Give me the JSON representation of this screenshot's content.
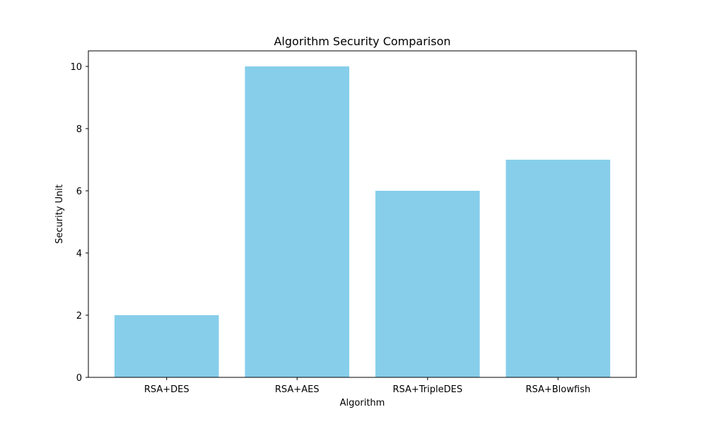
{
  "chart_data": {
    "type": "bar",
    "title": "Algorithm Security Comparison",
    "xlabel": "Algorithm",
    "ylabel": "Security Unit",
    "categories": [
      "RSA+DES",
      "RSA+AES",
      "RSA+TripleDES",
      "RSA+Blowfish"
    ],
    "values": [
      2,
      10,
      6,
      7
    ],
    "ylim": [
      0,
      10.5
    ],
    "yticks": [
      0,
      2,
      4,
      6,
      8,
      10
    ],
    "bar_color": "#87CEEB",
    "grid": false,
    "legend": "none"
  }
}
